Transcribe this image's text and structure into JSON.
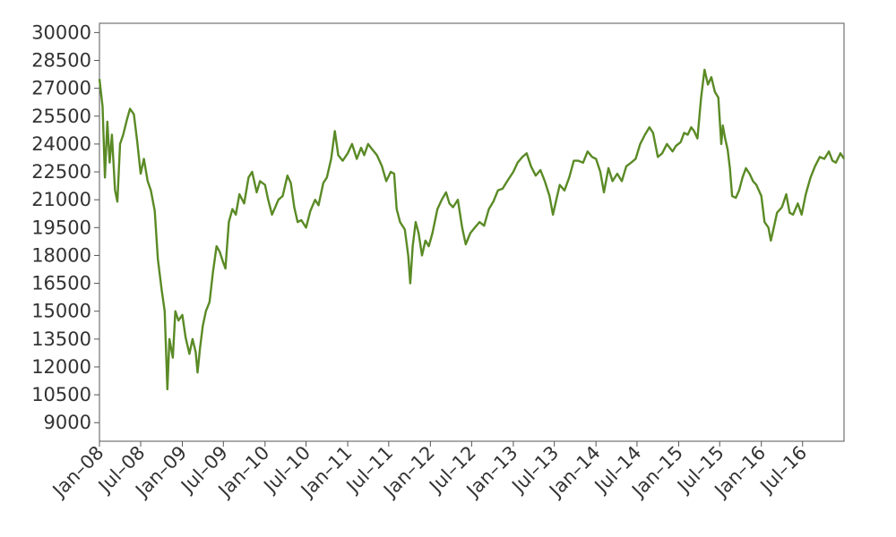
{
  "chart_data": {
    "type": "line",
    "title": "",
    "xlabel": "",
    "ylabel": "",
    "x_ticks": [
      "Jan–08",
      "Jul–08",
      "Jan–09",
      "Jul–09",
      "Jan–10",
      "Jul–10",
      "Jan–11",
      "Jul–11",
      "Jan–12",
      "Jul–12",
      "Jan–13",
      "Jul–13",
      "Jan–14",
      "Jul–14",
      "Jan–15",
      "Jul–15",
      "Jan–16",
      "Jul–16"
    ],
    "y_ticks": [
      "9000",
      "10500",
      "12000",
      "13500",
      "15000",
      "16500",
      "18000",
      "19500",
      "21000",
      "22500",
      "24000",
      "25500",
      "27000",
      "28500",
      "30000"
    ],
    "xlim": [
      "2008-01-01",
      "2016-12-31"
    ],
    "ylim": [
      8000,
      30500
    ],
    "grid": false,
    "series": [
      {
        "color": "#5a8a25",
        "points": [
          [
            "2008-01-01",
            27500
          ],
          [
            "2008-01-15",
            26000
          ],
          [
            "2008-01-25",
            22200
          ],
          [
            "2008-02-05",
            25200
          ],
          [
            "2008-02-15",
            23000
          ],
          [
            "2008-02-25",
            24500
          ],
          [
            "2008-03-10",
            21500
          ],
          [
            "2008-03-20",
            20900
          ],
          [
            "2008-04-01",
            24000
          ],
          [
            "2008-04-15",
            24500
          ],
          [
            "2008-05-01",
            25300
          ],
          [
            "2008-05-15",
            25900
          ],
          [
            "2008-06-01",
            25600
          ],
          [
            "2008-06-15",
            24200
          ],
          [
            "2008-07-01",
            22400
          ],
          [
            "2008-07-15",
            23200
          ],
          [
            "2008-08-01",
            22000
          ],
          [
            "2008-08-15",
            21500
          ],
          [
            "2008-09-01",
            20400
          ],
          [
            "2008-09-15",
            17800
          ],
          [
            "2008-10-01",
            16200
          ],
          [
            "2008-10-15",
            15000
          ],
          [
            "2008-10-27",
            10800
          ],
          [
            "2008-11-05",
            13500
          ],
          [
            "2008-11-20",
            12500
          ],
          [
            "2008-12-01",
            15000
          ],
          [
            "2008-12-15",
            14500
          ],
          [
            "2009-01-01",
            14800
          ],
          [
            "2009-01-15",
            13600
          ],
          [
            "2009-02-01",
            12700
          ],
          [
            "2009-02-15",
            13500
          ],
          [
            "2009-03-01",
            12800
          ],
          [
            "2009-03-09",
            11700
          ],
          [
            "2009-03-20",
            13000
          ],
          [
            "2009-04-01",
            14200
          ],
          [
            "2009-04-15",
            15000
          ],
          [
            "2009-05-01",
            15500
          ],
          [
            "2009-05-15",
            17000
          ],
          [
            "2009-06-01",
            18500
          ],
          [
            "2009-06-15",
            18200
          ],
          [
            "2009-07-01",
            17600
          ],
          [
            "2009-07-10",
            17300
          ],
          [
            "2009-07-25",
            19800
          ],
          [
            "2009-08-10",
            20500
          ],
          [
            "2009-08-25",
            20200
          ],
          [
            "2009-09-10",
            21300
          ],
          [
            "2009-10-01",
            20800
          ],
          [
            "2009-10-20",
            22200
          ],
          [
            "2009-11-05",
            22500
          ],
          [
            "2009-11-25",
            21400
          ],
          [
            "2009-12-10",
            22000
          ],
          [
            "2010-01-01",
            21800
          ],
          [
            "2010-01-15",
            21000
          ],
          [
            "2010-02-01",
            20200
          ],
          [
            "2010-02-15",
            20600
          ],
          [
            "2010-03-01",
            21000
          ],
          [
            "2010-03-20",
            21200
          ],
          [
            "2010-04-10",
            22300
          ],
          [
            "2010-04-25",
            21900
          ],
          [
            "2010-05-10",
            20600
          ],
          [
            "2010-05-25",
            19800
          ],
          [
            "2010-06-10",
            19900
          ],
          [
            "2010-07-01",
            19500
          ],
          [
            "2010-07-20",
            20400
          ],
          [
            "2010-08-10",
            21000
          ],
          [
            "2010-08-25",
            20700
          ],
          [
            "2010-09-15",
            21900
          ],
          [
            "2010-10-01",
            22200
          ],
          [
            "2010-10-20",
            23200
          ],
          [
            "2010-11-05",
            24700
          ],
          [
            "2010-11-20",
            23400
          ],
          [
            "2010-12-10",
            23100
          ],
          [
            "2011-01-01",
            23500
          ],
          [
            "2011-01-20",
            24000
          ],
          [
            "2011-02-10",
            23200
          ],
          [
            "2011-03-01",
            23800
          ],
          [
            "2011-03-15",
            23400
          ],
          [
            "2011-04-01",
            24000
          ],
          [
            "2011-04-20",
            23700
          ],
          [
            "2011-05-10",
            23400
          ],
          [
            "2011-06-01",
            22800
          ],
          [
            "2011-06-20",
            22000
          ],
          [
            "2011-07-10",
            22500
          ],
          [
            "2011-07-25",
            22400
          ],
          [
            "2011-08-05",
            20500
          ],
          [
            "2011-08-20",
            19800
          ],
          [
            "2011-09-10",
            19400
          ],
          [
            "2011-09-25",
            18000
          ],
          [
            "2011-10-04",
            16500
          ],
          [
            "2011-10-15",
            18500
          ],
          [
            "2011-10-28",
            19800
          ],
          [
            "2011-11-10",
            19200
          ],
          [
            "2011-11-25",
            18000
          ],
          [
            "2011-12-10",
            18800
          ],
          [
            "2011-12-25",
            18500
          ],
          [
            "2012-01-10",
            19200
          ],
          [
            "2012-02-01",
            20500
          ],
          [
            "2012-02-20",
            21000
          ],
          [
            "2012-03-10",
            21400
          ],
          [
            "2012-03-25",
            20800
          ],
          [
            "2012-04-10",
            20600
          ],
          [
            "2012-05-01",
            21000
          ],
          [
            "2012-05-20",
            19500
          ],
          [
            "2012-06-05",
            18600
          ],
          [
            "2012-06-25",
            19200
          ],
          [
            "2012-07-15",
            19500
          ],
          [
            "2012-08-05",
            19800
          ],
          [
            "2012-08-25",
            19600
          ],
          [
            "2012-09-15",
            20500
          ],
          [
            "2012-10-05",
            20900
          ],
          [
            "2012-10-25",
            21500
          ],
          [
            "2012-11-15",
            21600
          ],
          [
            "2012-12-05",
            22000
          ],
          [
            "2013-01-01",
            22500
          ],
          [
            "2013-01-20",
            23000
          ],
          [
            "2013-02-10",
            23300
          ],
          [
            "2013-03-01",
            23500
          ],
          [
            "2013-03-20",
            22800
          ],
          [
            "2013-04-10",
            22300
          ],
          [
            "2013-05-01",
            22600
          ],
          [
            "2013-05-20",
            22000
          ],
          [
            "2013-06-10",
            21200
          ],
          [
            "2013-06-25",
            20200
          ],
          [
            "2013-07-10",
            21000
          ],
          [
            "2013-07-25",
            21800
          ],
          [
            "2013-08-15",
            21500
          ],
          [
            "2013-09-05",
            22200
          ],
          [
            "2013-09-25",
            23100
          ],
          [
            "2013-10-15",
            23100
          ],
          [
            "2013-11-05",
            23000
          ],
          [
            "2013-11-25",
            23600
          ],
          [
            "2013-12-15",
            23300
          ],
          [
            "2014-01-01",
            23200
          ],
          [
            "2014-01-20",
            22500
          ],
          [
            "2014-02-05",
            21400
          ],
          [
            "2014-02-25",
            22700
          ],
          [
            "2014-03-15",
            22000
          ],
          [
            "2014-04-05",
            22400
          ],
          [
            "2014-04-25",
            22000
          ],
          [
            "2014-05-15",
            22800
          ],
          [
            "2014-06-05",
            23000
          ],
          [
            "2014-06-25",
            23200
          ],
          [
            "2014-07-15",
            24000
          ],
          [
            "2014-08-05",
            24500
          ],
          [
            "2014-08-25",
            24900
          ],
          [
            "2014-09-10",
            24600
          ],
          [
            "2014-10-01",
            23300
          ],
          [
            "2014-10-20",
            23500
          ],
          [
            "2014-11-10",
            24000
          ],
          [
            "2014-12-05",
            23600
          ],
          [
            "2014-12-20",
            23900
          ],
          [
            "2015-01-10",
            24100
          ],
          [
            "2015-01-25",
            24600
          ],
          [
            "2015-02-10",
            24500
          ],
          [
            "2015-02-25",
            24900
          ],
          [
            "2015-03-10",
            24700
          ],
          [
            "2015-03-25",
            24300
          ],
          [
            "2015-04-10",
            26500
          ],
          [
            "2015-04-25",
            28000
          ],
          [
            "2015-05-10",
            27200
          ],
          [
            "2015-05-25",
            27600
          ],
          [
            "2015-06-10",
            26800
          ],
          [
            "2015-06-25",
            26500
          ],
          [
            "2015-07-08",
            24000
          ],
          [
            "2015-07-15",
            25000
          ],
          [
            "2015-07-25",
            24300
          ],
          [
            "2015-08-05",
            23700
          ],
          [
            "2015-08-15",
            22700
          ],
          [
            "2015-08-25",
            21200
          ],
          [
            "2015-09-10",
            21100
          ],
          [
            "2015-09-25",
            21500
          ],
          [
            "2015-10-10",
            22200
          ],
          [
            "2015-10-25",
            22700
          ],
          [
            "2015-11-10",
            22400
          ],
          [
            "2015-11-25",
            22000
          ],
          [
            "2015-12-10",
            21800
          ],
          [
            "2016-01-01",
            21200
          ],
          [
            "2016-01-15",
            19800
          ],
          [
            "2016-02-01",
            19500
          ],
          [
            "2016-02-12",
            18800
          ],
          [
            "2016-02-25",
            19500
          ],
          [
            "2016-03-10",
            20300
          ],
          [
            "2016-04-01",
            20600
          ],
          [
            "2016-04-20",
            21300
          ],
          [
            "2016-05-05",
            20300
          ],
          [
            "2016-05-20",
            20200
          ],
          [
            "2016-06-10",
            20800
          ],
          [
            "2016-06-27",
            20200
          ],
          [
            "2016-07-15",
            21300
          ],
          [
            "2016-08-05",
            22200
          ],
          [
            "2016-08-25",
            22800
          ],
          [
            "2016-09-15",
            23300
          ],
          [
            "2016-10-05",
            23200
          ],
          [
            "2016-10-25",
            23600
          ],
          [
            "2016-11-10",
            23100
          ],
          [
            "2016-11-25",
            23000
          ],
          [
            "2016-12-15",
            23500
          ],
          [
            "2016-12-31",
            23200
          ]
        ]
      }
    ]
  }
}
